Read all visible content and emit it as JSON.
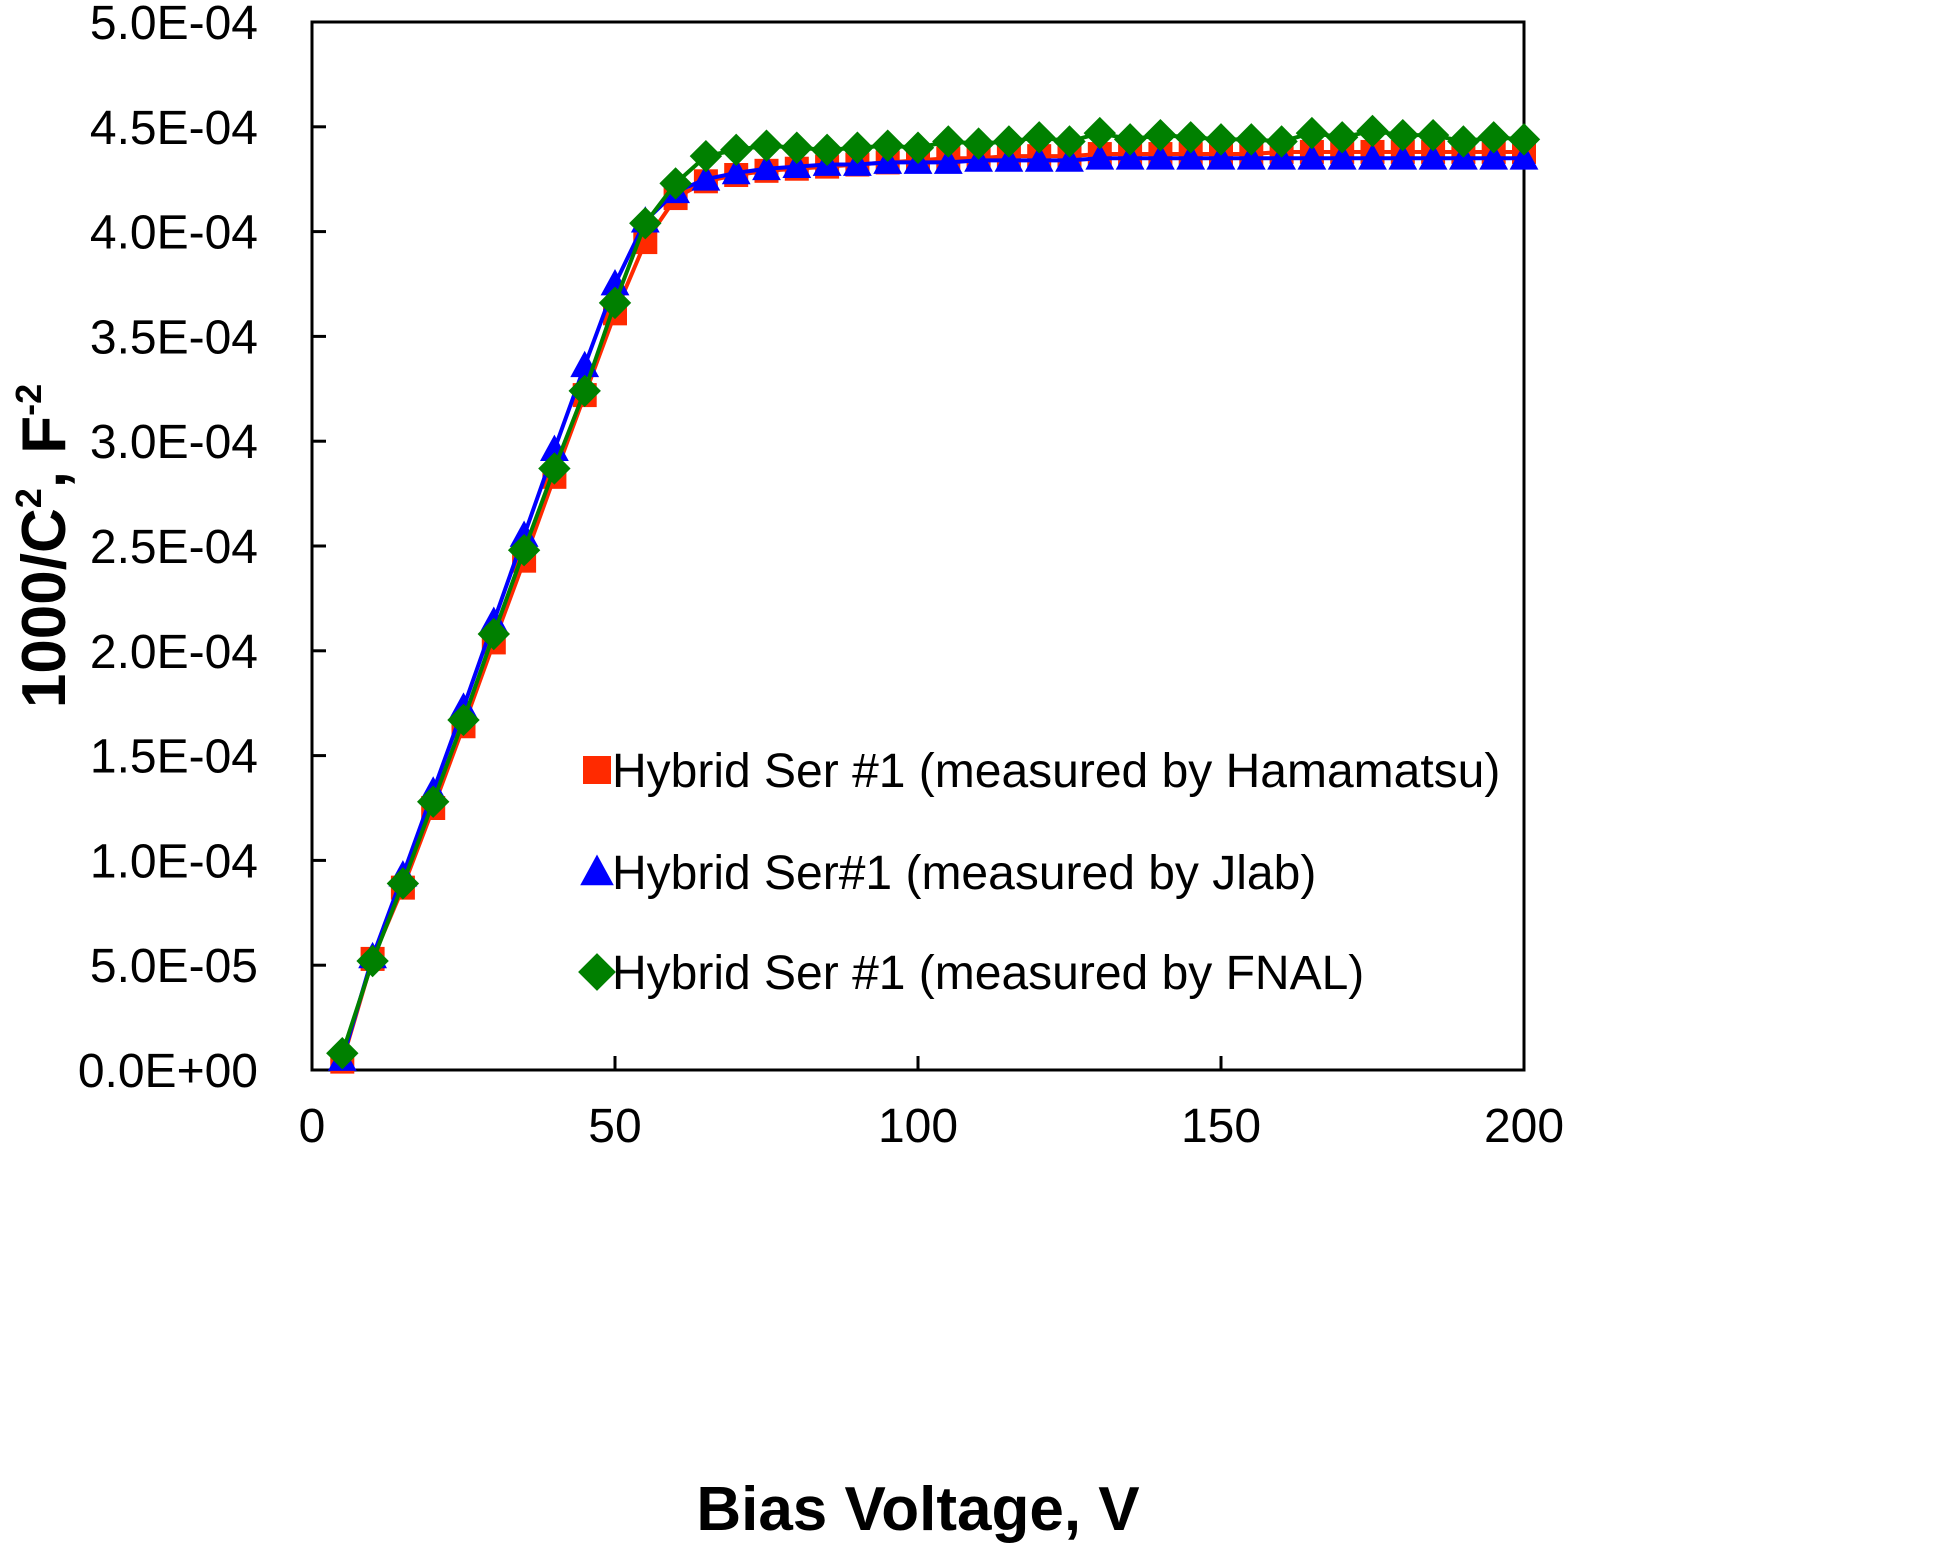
{
  "chart_data": {
    "type": "line",
    "title": "",
    "xlabel": "Bias Voltage, V",
    "ylabel_main": "1000/C",
    "ylabel_sup1": "2",
    "ylabel_mid": ", F",
    "ylabel_sup2": "-2",
    "xlim": [
      0,
      200
    ],
    "ylim": [
      0,
      0.0005
    ],
    "x_ticks": [
      0,
      50,
      100,
      150,
      200
    ],
    "x_tick_labels": [
      "0",
      "50",
      "100",
      "150",
      "200"
    ],
    "y_ticks": [
      0,
      5e-05,
      0.0001,
      0.00015,
      0.0002,
      0.00025,
      0.0003,
      0.00035,
      0.0004,
      0.00045,
      0.0005
    ],
    "y_tick_labels": [
      "0.0E+00",
      "5.0E-05",
      "1.0E-04",
      "1.5E-04",
      "2.0E-04",
      "2.5E-04",
      "3.0E-04",
      "3.5E-04",
      "4.0E-04",
      "4.5E-04",
      "5.0E-04"
    ],
    "grid": false,
    "legend_position": "lower-right",
    "x": [
      5,
      10,
      15,
      20,
      25,
      30,
      35,
      40,
      45,
      50,
      55,
      60,
      65,
      70,
      75,
      80,
      85,
      90,
      95,
      100,
      105,
      110,
      115,
      120,
      125,
      130,
      135,
      140,
      145,
      150,
      155,
      160,
      165,
      170,
      175,
      180,
      185,
      190,
      195,
      200
    ],
    "series": [
      {
        "name": "Hybrid Ser #1 (measured by Hamamatsu)",
        "color": "#ff2a00",
        "marker": "square",
        "values": [
          4e-06,
          5.3e-05,
          8.7e-05,
          0.000125,
          0.000164,
          0.000204,
          0.000243,
          0.000283,
          0.000322,
          0.000361,
          0.000395,
          0.000416,
          0.000424,
          0.000427,
          0.000429,
          0.00043,
          0.000431,
          0.000432,
          0.000433,
          0.000434,
          0.000435,
          0.000435,
          0.000436,
          0.000436,
          0.000436,
          0.000437,
          0.000437,
          0.000437,
          0.000437,
          0.000437,
          0.000437,
          0.000438,
          0.000438,
          0.000438,
          0.000438,
          0.000438,
          0.000438,
          0.000438,
          0.000438,
          0.000438
        ]
      },
      {
        "name": "Hybrid Ser#1 (measured by Jlab)",
        "color": "#0000ff",
        "marker": "triangle",
        "values": [
          5e-06,
          5.4e-05,
          9.3e-05,
          0.000133,
          0.000173,
          0.000214,
          0.000255,
          0.000296,
          0.000336,
          0.000375,
          0.000405,
          0.000419,
          0.000425,
          0.000428,
          0.00043,
          0.000431,
          0.000432,
          0.000432,
          0.000433,
          0.000433,
          0.000433,
          0.000434,
          0.000434,
          0.000434,
          0.000434,
          0.000435,
          0.000435,
          0.000435,
          0.000435,
          0.000435,
          0.000435,
          0.000435,
          0.000435,
          0.000435,
          0.000435,
          0.000435,
          0.000435,
          0.000435,
          0.000435,
          0.000435
        ]
      },
      {
        "name": "Hybrid Ser #1 (measured by FNAL)",
        "color": "#008000",
        "marker": "diamond",
        "values": [
          8e-06,
          5.2e-05,
          8.9e-05,
          0.000128,
          0.000167,
          0.000208,
          0.000248,
          0.000287,
          0.000324,
          0.000366,
          0.000404,
          0.000423,
          0.000436,
          0.000439,
          0.000441,
          0.00044,
          0.000439,
          0.00044,
          0.000441,
          0.00044,
          0.000443,
          0.000442,
          0.000443,
          0.000445,
          0.000443,
          0.000447,
          0.000444,
          0.000446,
          0.000445,
          0.000444,
          0.000444,
          0.000443,
          0.000447,
          0.000445,
          0.000448,
          0.000446,
          0.000446,
          0.000443,
          0.000445,
          0.000444
        ]
      }
    ]
  }
}
